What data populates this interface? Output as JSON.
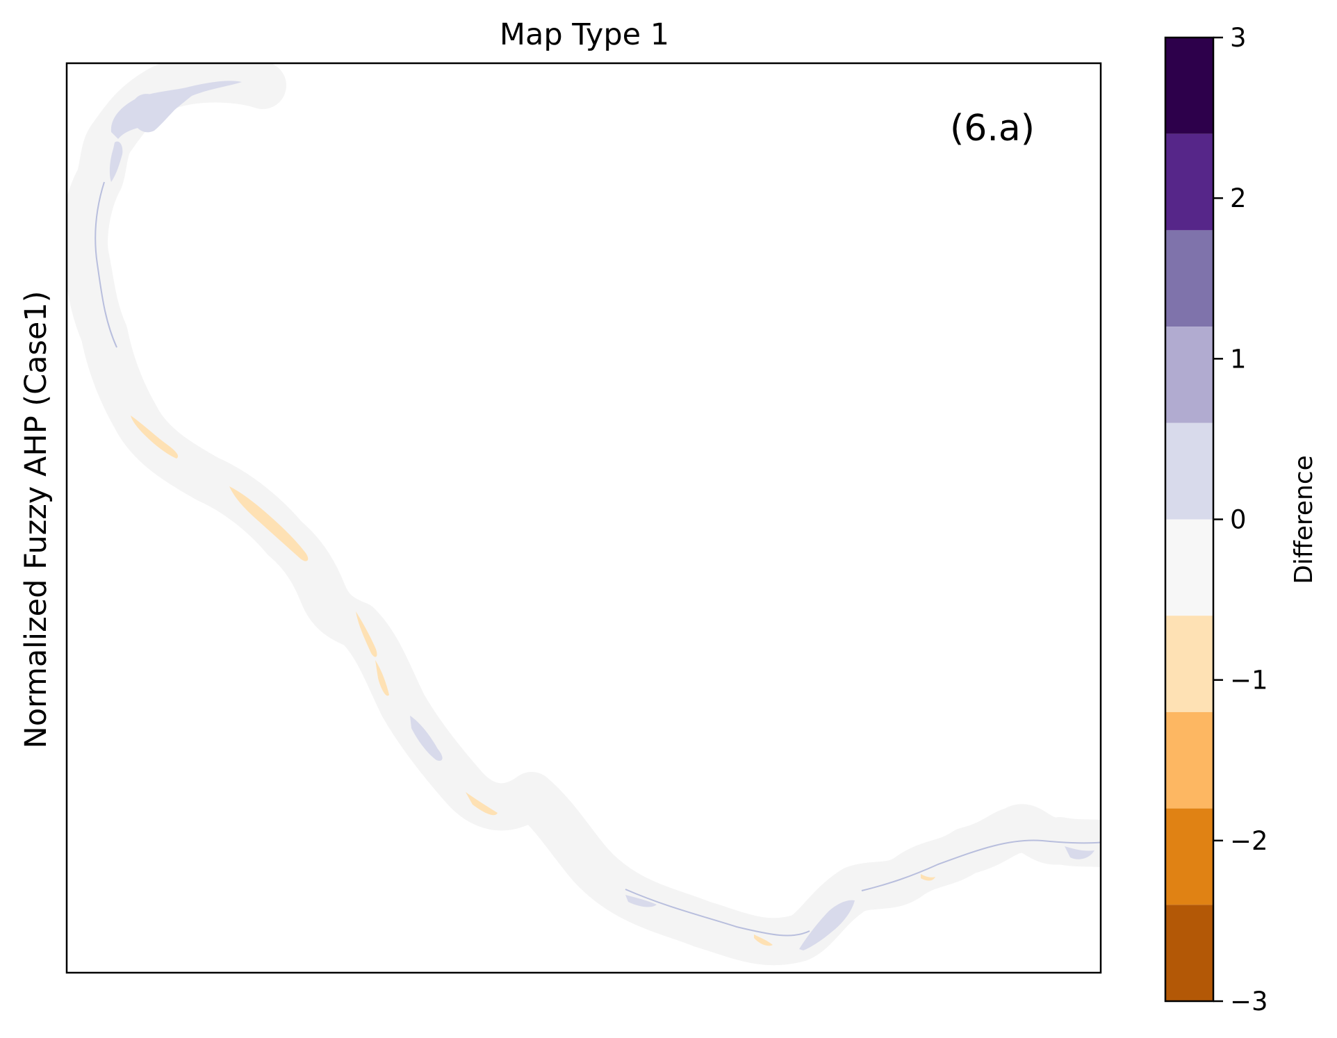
{
  "figure": {
    "title": "Map Type 1",
    "ylabel": "Normalized Fuzzy AHP (Case1)",
    "panel_label": "(6.a)"
  },
  "colorbar": {
    "label": "Difference",
    "range": [
      -3,
      3
    ],
    "ticks": [
      {
        "value": 3,
        "label": "3"
      },
      {
        "value": 2,
        "label": "2"
      },
      {
        "value": 1,
        "label": "1"
      },
      {
        "value": 0,
        "label": "0"
      },
      {
        "value": -1,
        "label": "−1"
      },
      {
        "value": -2,
        "label": "−2"
      },
      {
        "value": -3,
        "label": "−3"
      }
    ],
    "bins": [
      {
        "from": 2.4,
        "to": 3.0,
        "color": "#2d004b"
      },
      {
        "from": 1.8,
        "to": 2.4,
        "color": "#562689"
      },
      {
        "from": 1.2,
        "to": 1.8,
        "color": "#7f73ab"
      },
      {
        "from": 0.6,
        "to": 1.2,
        "color": "#b1abd0"
      },
      {
        "from": 0.0,
        "to": 0.6,
        "color": "#d8daeb"
      },
      {
        "from": -0.6,
        "to": 0.0,
        "color": "#f7f7f7"
      },
      {
        "from": -1.2,
        "to": -0.6,
        "color": "#fee1b4"
      },
      {
        "from": -1.8,
        "to": -1.2,
        "color": "#fdb762"
      },
      {
        "from": -2.4,
        "to": -1.8,
        "color": "#e08214"
      },
      {
        "from": -3.0,
        "to": -2.4,
        "color": "#b35806"
      }
    ],
    "bottom_bin_color": "#7f3b08"
  },
  "map_colors": {
    "buffer": "#f4f4f4",
    "positive": "#d8daeb",
    "negative": "#fee1b4",
    "channel": "#b8bedd"
  }
}
